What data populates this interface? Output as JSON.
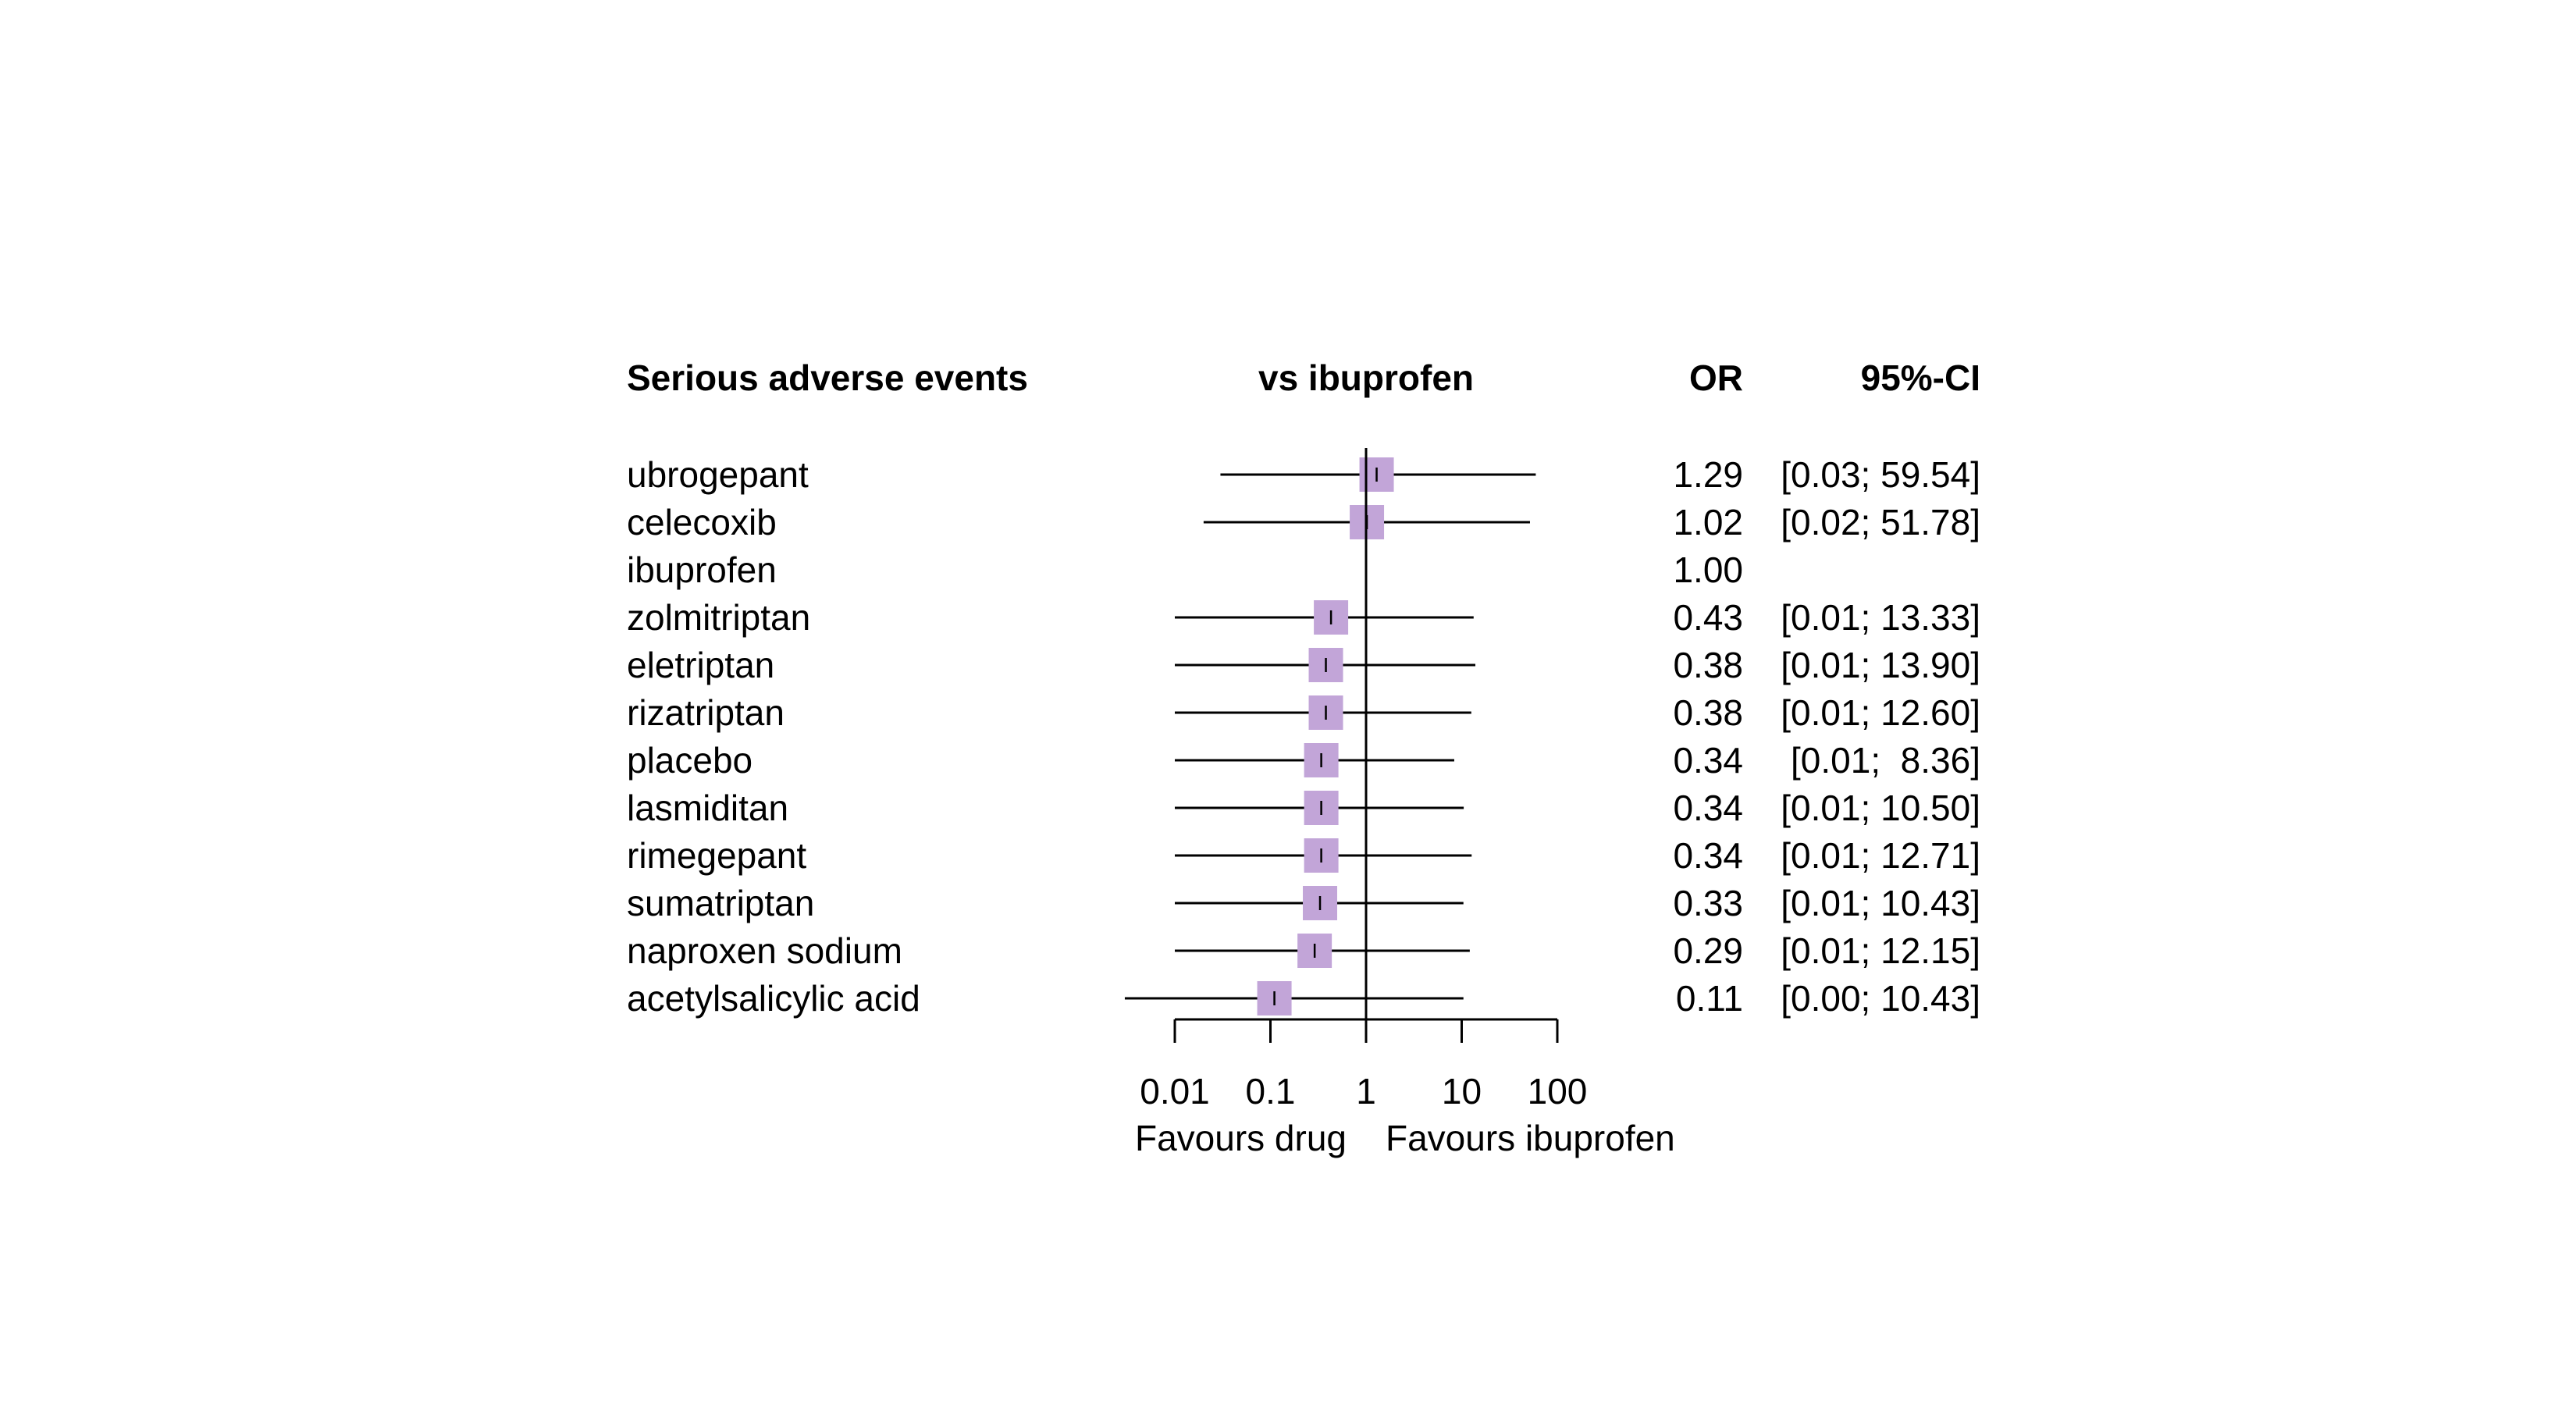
{
  "chart_data": {
    "type": "forest",
    "headers": {
      "label": "Serious adverse events",
      "plot": "vs ibuprofen",
      "estimate": "OR",
      "ci": "95%-CI"
    },
    "x_scale": "log",
    "xlim": [
      0.01,
      100
    ],
    "ticks": [
      0.01,
      0.1,
      1,
      10,
      100
    ],
    "tick_labels": [
      "0.01",
      "0.1",
      "1",
      "10",
      "100"
    ],
    "reference": 1,
    "favours_left": "Favours drug",
    "favours_right": "Favours ibuprofen",
    "box_color": "#C2A5D8",
    "rows": [
      {
        "name": "ubrogepant",
        "or": 1.29,
        "lower": 0.03,
        "upper": 59.54,
        "or_text": "1.29",
        "ci_text": "[0.03; 59.54]"
      },
      {
        "name": "celecoxib",
        "or": 1.02,
        "lower": 0.02,
        "upper": 51.78,
        "or_text": "1.02",
        "ci_text": "[0.02; 51.78]"
      },
      {
        "name": "ibuprofen",
        "or": 1.0,
        "lower": null,
        "upper": null,
        "or_text": "1.00",
        "ci_text": ""
      },
      {
        "name": "zolmitriptan",
        "or": 0.43,
        "lower": 0.01,
        "upper": 13.33,
        "or_text": "0.43",
        "ci_text": "[0.01; 13.33]"
      },
      {
        "name": "eletriptan",
        "or": 0.38,
        "lower": 0.01,
        "upper": 13.9,
        "or_text": "0.38",
        "ci_text": "[0.01; 13.90]"
      },
      {
        "name": "rizatriptan",
        "or": 0.38,
        "lower": 0.01,
        "upper": 12.6,
        "or_text": "0.38",
        "ci_text": "[0.01; 12.60]"
      },
      {
        "name": "placebo",
        "or": 0.34,
        "lower": 0.01,
        "upper": 8.36,
        "or_text": "0.34",
        "ci_text": "[0.01;  8.36]"
      },
      {
        "name": "lasmiditan",
        "or": 0.34,
        "lower": 0.01,
        "upper": 10.5,
        "or_text": "0.34",
        "ci_text": "[0.01; 10.50]"
      },
      {
        "name": "rimegepant",
        "or": 0.34,
        "lower": 0.01,
        "upper": 12.71,
        "or_text": "0.34",
        "ci_text": "[0.01; 12.71]"
      },
      {
        "name": "sumatriptan",
        "or": 0.33,
        "lower": 0.01,
        "upper": 10.43,
        "or_text": "0.33",
        "ci_text": "[0.01; 10.43]"
      },
      {
        "name": "naproxen sodium",
        "or": 0.29,
        "lower": 0.01,
        "upper": 12.15,
        "or_text": "0.29",
        "ci_text": "[0.01; 12.15]"
      },
      {
        "name": "acetylsalicylic acid",
        "or": 0.11,
        "lower": 0.0,
        "upper": 10.43,
        "or_text": "0.11",
        "ci_text": "[0.00; 10.43]"
      }
    ]
  }
}
